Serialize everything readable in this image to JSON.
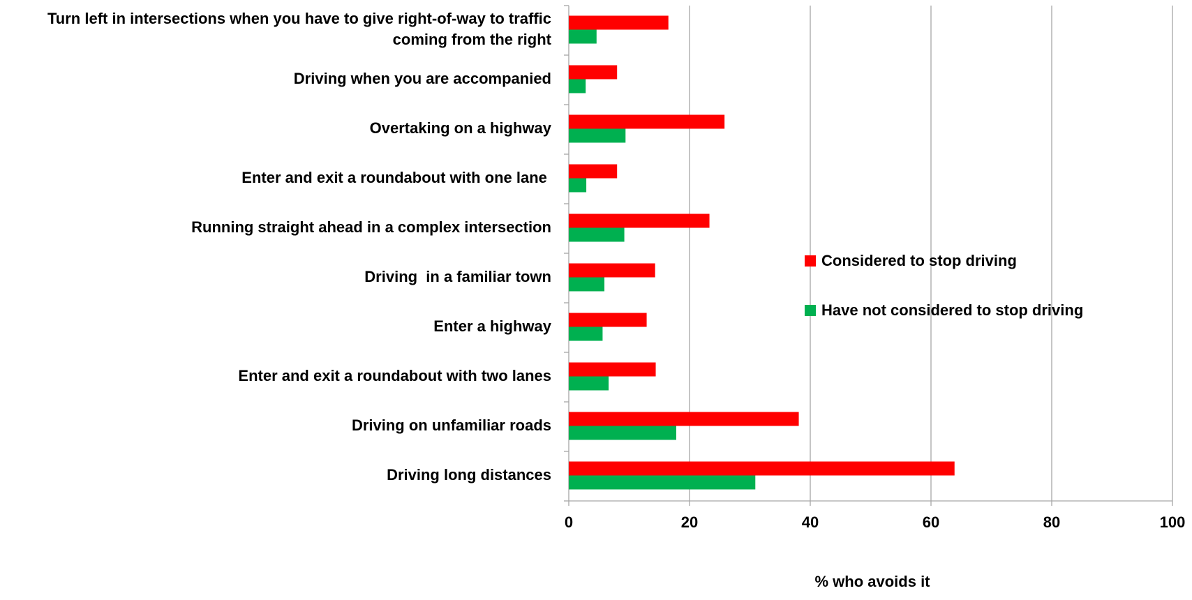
{
  "chart_data": {
    "type": "hbar",
    "xlabel": "% who avoids it",
    "categories": [
      "Turn left in intersections when you have to give right-of-way to traffic coming from the right",
      "Driving when you are accompanied",
      "Overtaking on a highway",
      "Enter and exit a roundabout with one lane ",
      "Running straight ahead in a complex intersection",
      "Driving  in a familiar town",
      "Enter a highway",
      "Enter and exit a roundabout with two lanes",
      "Driving on unfamiliar roads",
      "Driving long distances"
    ],
    "series": [
      {
        "name": "Considered to stop driving",
        "color": "#ff0000",
        "values": [
          16.5,
          8.0,
          25.8,
          8.0,
          23.3,
          14.3,
          12.9,
          14.4,
          38.1,
          63.9
        ]
      },
      {
        "name": "Have not considered to stop driving",
        "color": "#00b050",
        "values": [
          4.6,
          2.8,
          9.4,
          2.9,
          9.2,
          5.9,
          5.6,
          6.6,
          17.8,
          30.9
        ]
      }
    ],
    "xlim": [
      0,
      100
    ],
    "xticks": [
      0,
      20,
      40,
      60,
      80,
      100
    ],
    "grid": true,
    "legend": "right"
  }
}
